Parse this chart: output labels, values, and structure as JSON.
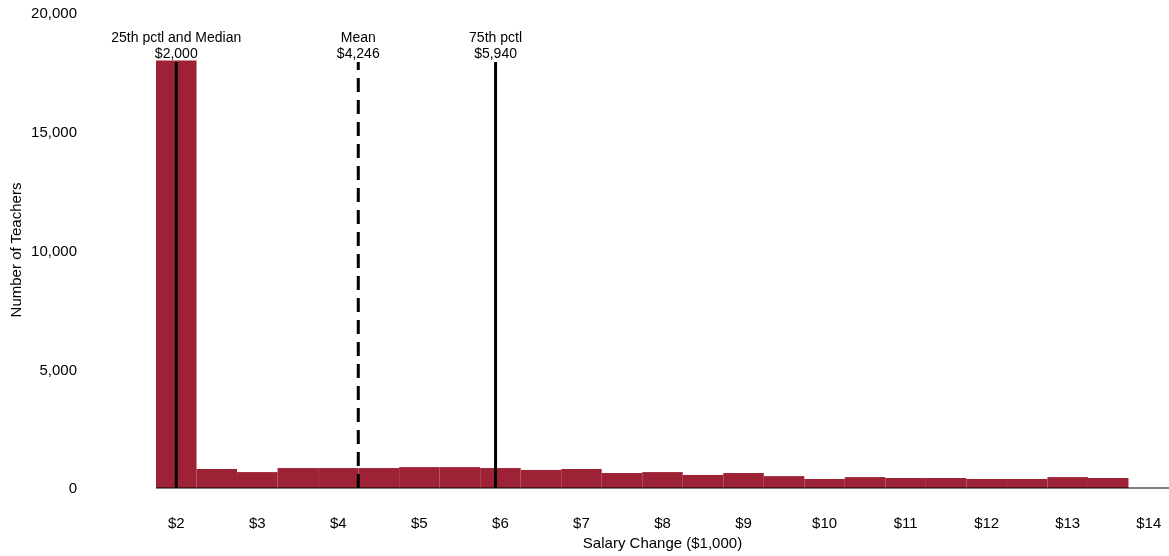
{
  "chart_data": {
    "type": "histogram",
    "xlabel": "Salary Change ($1,000)",
    "ylabel": "Number of Teachers",
    "bins": [
      1.75,
      2.25,
      2.75,
      3.25,
      3.75,
      4.25,
      4.75,
      5.25,
      5.75,
      6.25,
      6.75,
      7.25,
      7.75,
      8.25,
      8.75,
      9.25,
      9.75,
      10.25,
      10.75,
      11.25,
      11.75,
      12.25,
      12.75,
      13.25,
      13.75
    ],
    "values": [
      18000,
      800,
      670,
      840,
      840,
      840,
      880,
      880,
      840,
      760,
      800,
      630,
      670,
      550,
      630,
      500,
      380,
      460,
      420,
      420,
      380,
      380,
      460,
      420
    ],
    "color": "#9e2236",
    "xlim": [
      1.75,
      14.25
    ],
    "xticks": [
      {
        "value": 2,
        "label": "$2"
      },
      {
        "value": 3,
        "label": "$3"
      },
      {
        "value": 4,
        "label": "$4"
      },
      {
        "value": 5,
        "label": "$5"
      },
      {
        "value": 6,
        "label": "$6"
      },
      {
        "value": 7,
        "label": "$7"
      },
      {
        "value": 8,
        "label": "$8"
      },
      {
        "value": 9,
        "label": "$9"
      },
      {
        "value": 10,
        "label": "$10"
      },
      {
        "value": 11,
        "label": "$11"
      },
      {
        "value": 12,
        "label": "$12"
      },
      {
        "value": 13,
        "label": "$13"
      },
      {
        "value": 14,
        "label": "$14"
      }
    ],
    "ylim": [
      0,
      20000
    ],
    "yticks": [
      {
        "value": 0,
        "label": "0"
      },
      {
        "value": 5000,
        "label": "5,000"
      },
      {
        "value": 10000,
        "label": "10,000"
      },
      {
        "value": 15000,
        "label": "15,000"
      },
      {
        "value": 20000,
        "label": "20,000"
      }
    ],
    "grid": false,
    "ref_lines": [
      {
        "axis": "x",
        "value": 2,
        "label": "25th pctl and Median\n$2,000",
        "color": "#000000",
        "line_style": "solid"
      },
      {
        "axis": "x",
        "value": 4.246,
        "label": "Mean\n$4,246",
        "color": "#000000",
        "line_style": "dashed"
      },
      {
        "axis": "x",
        "value": 5.94,
        "label": "75th pctl\n$5,940",
        "color": "#000000",
        "line_style": "solid"
      }
    ]
  }
}
